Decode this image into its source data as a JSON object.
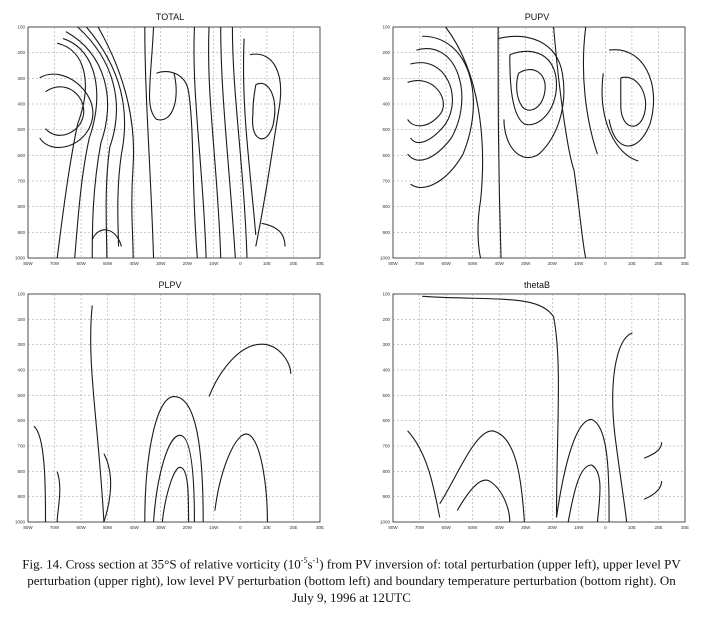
{
  "figure": {
    "caption": {
      "part1": "Fig. 14. Cross section at 35°S of relative vorticity (10",
      "exp1": "-5",
      "part2": "s",
      "exp2": "-1",
      "part3": ") from PV inversion of: total perturbation (upper left), upper level PV perturbation (upper right), low level PV perturbation (bottom left) and boundary temperature perturbation (bottom right). On July 9, 1996 at 12UTC"
    },
    "y_tick_labels": [
      "100",
      "200",
      "300",
      "400",
      "500",
      "600",
      "700",
      "800",
      "900",
      "1000"
    ],
    "x_tick_labels": [
      "80W",
      "70W",
      "60W",
      "50W",
      "40W",
      "30W",
      "20W",
      "10W",
      "0",
      "10E",
      "20E",
      "30E"
    ],
    "panels": [
      {
        "id": "total",
        "title": "TOTAL"
      },
      {
        "id": "pupv",
        "title": "PUPV"
      },
      {
        "id": "plpv",
        "title": "PLPV"
      },
      {
        "id": "thetab",
        "title": "thetaB"
      }
    ]
  }
}
